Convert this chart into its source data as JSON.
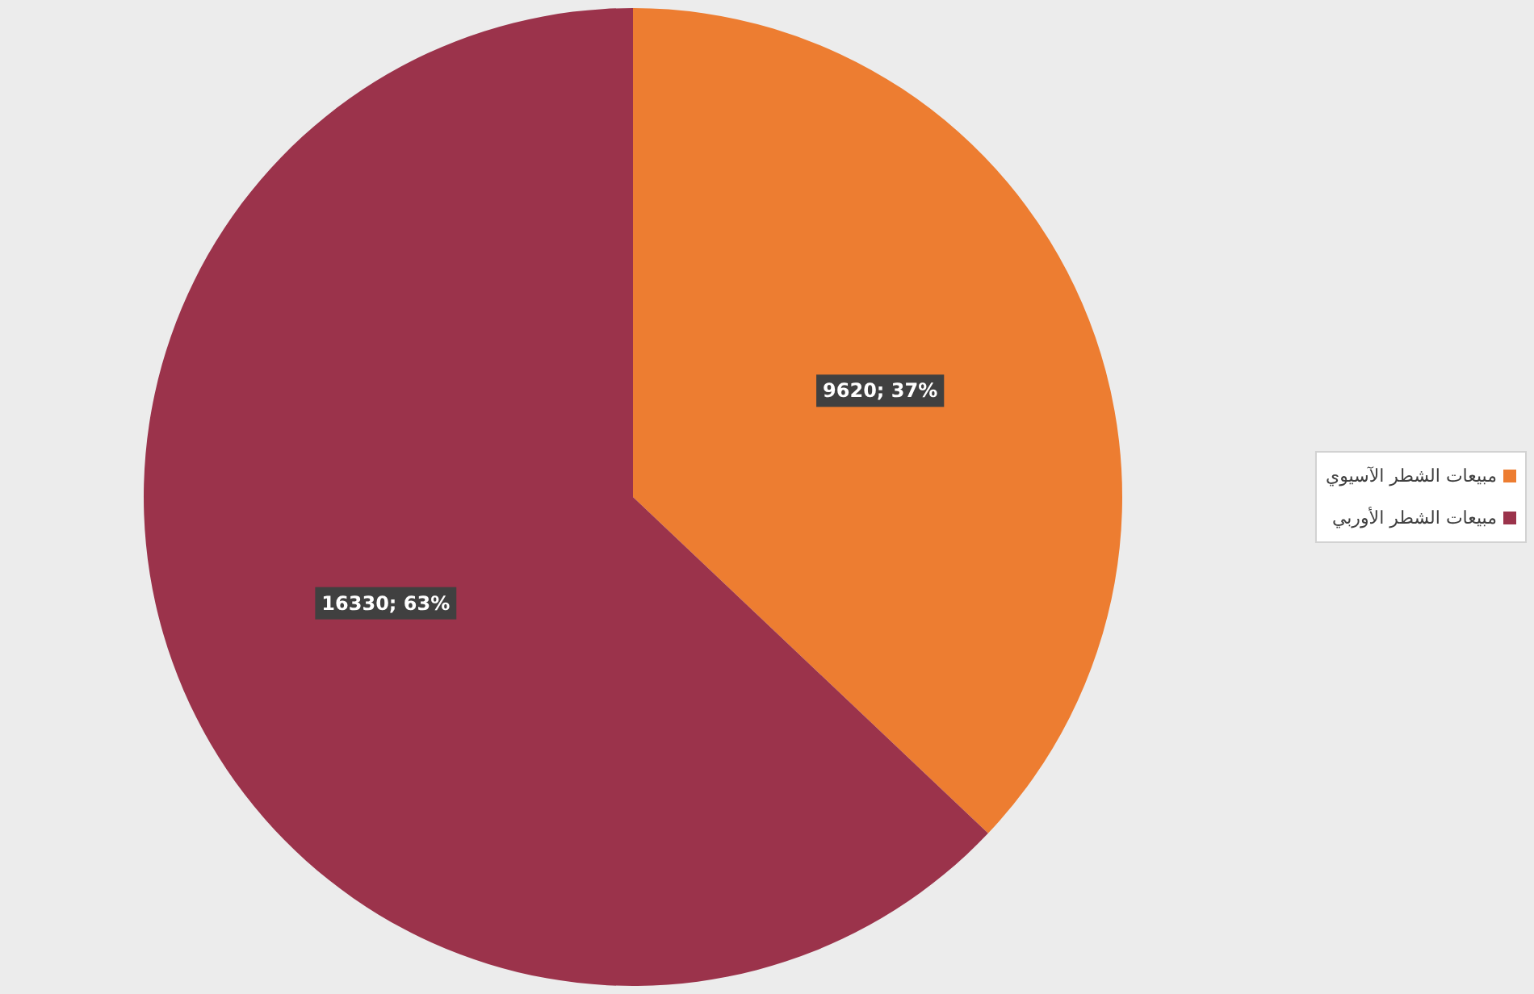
{
  "chart_data": {
    "type": "pie",
    "categories": [
      "مبيعات الشطر الآسيوي",
      "مبيعات الشطر الأوربي"
    ],
    "values": [
      9620,
      16330
    ],
    "colors": [
      "#ed7d31",
      "#9b334b"
    ],
    "value_labels": [
      "9620; 37%",
      "16330; 63%"
    ],
    "legend": "right"
  }
}
